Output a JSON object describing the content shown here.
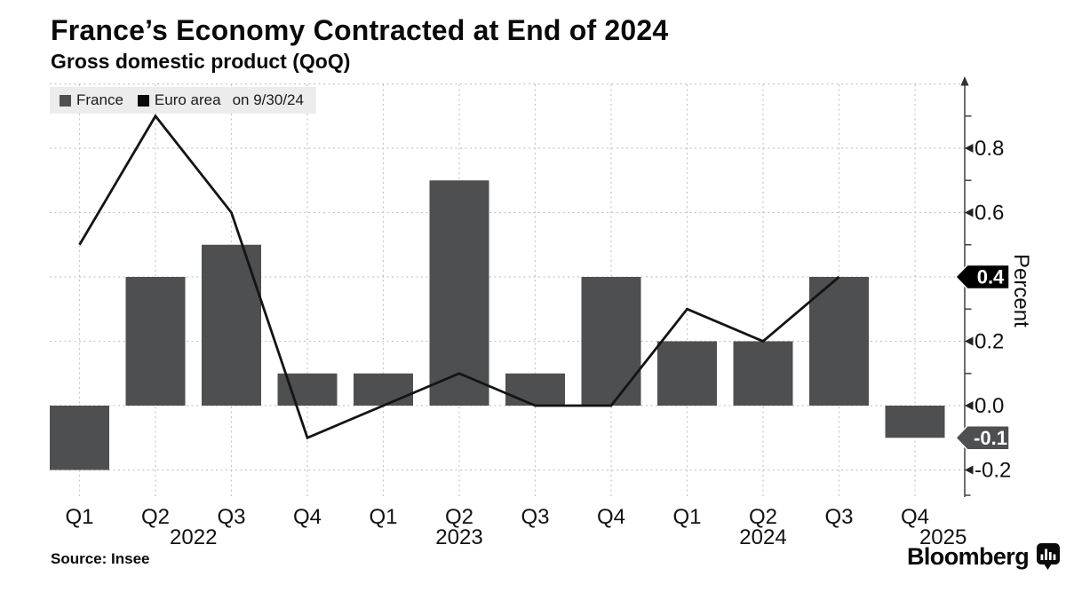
{
  "header": {
    "title": "France’s Economy Contracted at End of 2024",
    "subtitle": "Gross domestic product (QoQ)"
  },
  "legend": {
    "items": [
      {
        "label": "France",
        "color": "#4e4f51"
      },
      {
        "label": "Euro area",
        "color": "#0a0a0a"
      }
    ],
    "note": "on 9/30/24"
  },
  "y_axis": {
    "title": "Percent",
    "tick_labels": [
      {
        "text": "0.8",
        "value": 0.8
      },
      {
        "text": "0.6",
        "value": 0.6
      },
      {
        "text": "0.2",
        "value": 0.2
      },
      {
        "text": "0.0",
        "value": 0.0
      },
      {
        "text": "-0.2",
        "value": -0.2
      }
    ],
    "last_value_tags": [
      {
        "series": "Euro area",
        "text": "0.4",
        "value": 0.4,
        "bg": "#000000",
        "fg": "#ffffff"
      },
      {
        "series": "France",
        "text": "-0.1",
        "value": -0.1,
        "bg": "#4e4f51",
        "fg": "#ffffff"
      }
    ]
  },
  "footer": {
    "source": "Source: Insee",
    "brand": "Bloomberg"
  },
  "chart_data": {
    "type": "bar+line",
    "title": "France’s Economy Contracted at End of 2024",
    "subtitle": "Gross domestic product (QoQ)",
    "xlabel": "",
    "ylabel": "Percent",
    "categories": [
      "Q1",
      "Q2",
      "Q3",
      "Q4",
      "Q1",
      "Q2",
      "Q3",
      "Q4",
      "Q1",
      "Q2",
      "Q3",
      "Q4"
    ],
    "year_tick_labels": [
      {
        "text": "2022",
        "position_index": 1.5
      },
      {
        "text": "2023",
        "position_index": 5
      },
      {
        "text": "2024",
        "position_index": 9
      },
      {
        "text": "2025",
        "position_index": 11.37
      }
    ],
    "series": [
      {
        "name": "France",
        "type": "bar",
        "color": "#4e4f51",
        "values": [
          -0.2,
          0.4,
          0.5,
          0.1,
          0.1,
          0.7,
          0.1,
          0.4,
          0.2,
          0.2,
          0.4,
          -0.1
        ]
      },
      {
        "name": "Euro area",
        "type": "line",
        "color": "#141414",
        "values": [
          0.5,
          0.9,
          0.6,
          -0.1,
          0.0,
          0.1,
          0.0,
          0.0,
          0.3,
          0.2,
          0.4,
          null
        ]
      }
    ],
    "ylim": [
      -0.28,
      1.02
    ],
    "grid": {
      "horizontal_values": [
        1.0,
        0.8,
        0.6,
        0.4,
        0.2,
        0.0,
        -0.2
      ],
      "vertical": "per-category",
      "style": "dotted"
    },
    "y_major_ticks": [
      0.8,
      0.6,
      0.4,
      0.2,
      0.0,
      -0.2
    ],
    "y_minor_ticks": [
      0.9,
      0.7,
      0.5,
      0.3,
      0.1,
      -0.1
    ],
    "legend_position": "top-left"
  }
}
